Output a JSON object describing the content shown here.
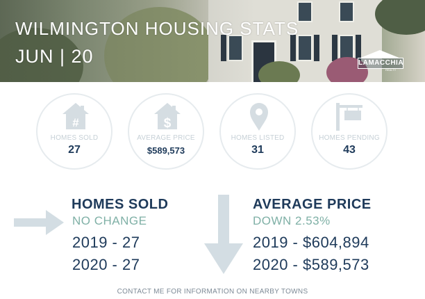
{
  "header": {
    "title": "WILMINGTON HOUSING STATS",
    "date": "JUN | 20",
    "logo_text": "LAMACCHIA",
    "logo_sub": "REALTY"
  },
  "stats": [
    {
      "label": "HOMES SOLD",
      "value": "27",
      "icon": "house-hash-icon"
    },
    {
      "label": "AVERAGE PRICE",
      "value": "$589,573",
      "icon": "house-dollar-icon"
    },
    {
      "label": "HOMES LISTED",
      "value": "31",
      "icon": "map-pin-icon"
    },
    {
      "label": "HOMES PENDING",
      "value": "43",
      "icon": "sign-post-icon"
    }
  ],
  "sold": {
    "title": "HOMES SOLD",
    "change": "NO CHANGE",
    "line1": "2019 - 27",
    "line2": "2020 - 27"
  },
  "price": {
    "title": "AVERAGE PRICE",
    "change": "DOWN 2.53%",
    "line1": "2019 - $604,894",
    "line2": "2020 - $589,573"
  },
  "footer": "CONTACT ME FOR INFORMATION ON NEARBY TOWNS",
  "colors": {
    "navy": "#1e3a5a",
    "teal": "#7fb0a6",
    "light": "#c6d0d6",
    "arrow": "#d3dde3"
  }
}
